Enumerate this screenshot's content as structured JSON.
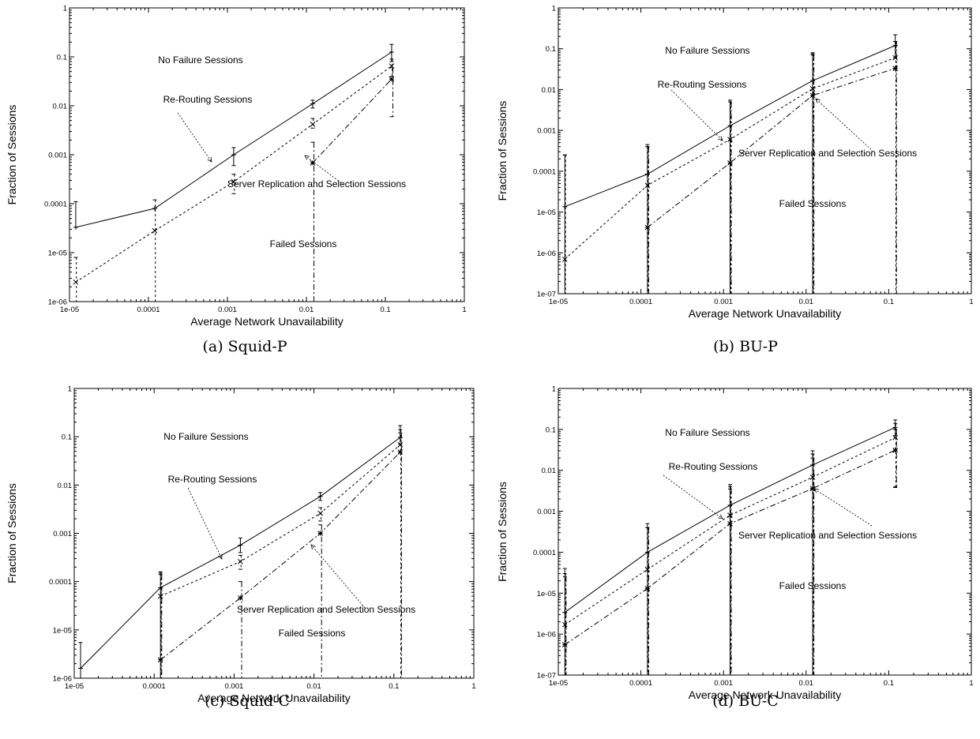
{
  "chart_data": [
    {
      "type": "line",
      "caption": "(a) Squid-P",
      "xlabel": "Average Network Unavailability",
      "ylabel": "Fraction of Sessions",
      "xscale": "log",
      "yscale": "log",
      "xlim": [
        1e-05,
        1
      ],
      "ylim": [
        1e-06,
        1
      ],
      "xticks": [
        "1e-05",
        "0.0001",
        "0.001",
        "0.01",
        "0.1",
        "1"
      ],
      "yticks": [
        "1e-06",
        "1e-05",
        "0.0001",
        "0.001",
        "0.01",
        "0.1",
        "1"
      ],
      "x": [
        1.2e-05,
        0.00012,
        0.0012,
        0.012,
        0.12
      ],
      "series": [
        {
          "values": [
            3.3e-05,
            8e-05,
            0.001,
            0.011,
            0.125
          ],
          "marker": "+",
          "err_low": [
            null,
            null,
            0.0006,
            0.009,
            0.08
          ],
          "err_high": [
            0.00011,
            null,
            0.0014,
            0.013,
            0.18
          ]
        },
        {
          "values": [
            2.5e-06,
            2.8e-05,
            0.00028,
            0.0042,
            0.065
          ],
          "marker": "x",
          "err_low": [
            1e-06,
            1e-06,
            0.00016,
            0.0035,
            0.04
          ],
          "err_high": [
            8e-06,
            0.00012,
            0.0004,
            0.0055,
            0.09
          ]
        },
        {
          "values": [
            null,
            null,
            null,
            0.00068,
            0.035
          ],
          "marker": "*",
          "err_low": [
            null,
            null,
            null,
            1e-06,
            0.006
          ],
          "err_high": [
            null,
            null,
            null,
            0.0018,
            0.06
          ]
        }
      ],
      "annotations": [
        {
          "text": "No Failure Sessions"
        },
        {
          "text": "Re-Routing Sessions"
        },
        {
          "text": "Server Replication and Selection Sessions"
        },
        {
          "text": "Failed Sessions"
        }
      ]
    },
    {
      "type": "line",
      "caption": "(b) BU-P",
      "xlabel": "Average Network Unavailability",
      "ylabel": "Fraction of Sessions",
      "xscale": "log",
      "yscale": "log",
      "xlim": [
        1e-05,
        1
      ],
      "ylim": [
        1e-07,
        1
      ],
      "xticks": [
        "1e-05",
        "0.0001",
        "0.001",
        "0.01",
        "0.1",
        "1"
      ],
      "yticks": [
        "1e-07",
        "1e-06",
        "1e-05",
        "0.0001",
        "0.001",
        "0.01",
        "0.1",
        "1"
      ],
      "x": [
        1.2e-05,
        0.00012,
        0.0012,
        0.012,
        0.12
      ],
      "series": [
        {
          "values": [
            1.35e-05,
            8.5e-05,
            0.0013,
            0.0165,
            0.12
          ],
          "marker": "+",
          "err_low": [
            1e-07,
            1e-07,
            1e-07,
            1e-07,
            0.06
          ],
          "err_high": [
            0.00025,
            0.00045,
            0.0055,
            0.08,
            0.22
          ]
        },
        {
          "values": [
            7e-07,
            4.5e-05,
            0.0006,
            0.0105,
            0.06
          ],
          "marker": "x",
          "err_low": [
            1e-07,
            1e-07,
            1e-07,
            1e-07,
            1e-07
          ],
          "err_high": [
            0.00025,
            0.0004,
            0.005,
            0.075,
            0.15
          ]
        },
        {
          "values": [
            null,
            4.2e-06,
            0.00016,
            0.0072,
            0.033
          ],
          "marker": "*",
          "err_low": [
            null,
            1e-07,
            1e-07,
            1e-07,
            1e-07
          ],
          "err_high": [
            null,
            0.0004,
            0.005,
            0.07,
            0.15
          ]
        }
      ],
      "annotations": [
        {
          "text": "No Failure Sessions"
        },
        {
          "text": "Re-Routing Sessions"
        },
        {
          "text": "Server Replication and Selection Sessions"
        },
        {
          "text": "Failed Sessions"
        }
      ]
    },
    {
      "type": "line",
      "caption": "(c) Squid-C",
      "xlabel": "Average Network Unavailability",
      "ylabel": "Fraction of Sessions",
      "xscale": "log",
      "yscale": "log",
      "xlim": [
        1e-05,
        1
      ],
      "ylim": [
        1e-06,
        1
      ],
      "xticks": [
        "1e-05",
        "0.0001",
        "0.001",
        "0.01",
        "0.1",
        "1"
      ],
      "yticks": [
        "1e-06",
        "1e-05",
        "0.0001",
        "0.001",
        "0.01",
        "0.1",
        "1"
      ],
      "x": [
        1.2e-05,
        0.00012,
        0.0012,
        0.012,
        0.12
      ],
      "series": [
        {
          "values": [
            1.6e-06,
            7.5e-05,
            0.00057,
            0.0058,
            0.097
          ],
          "marker": "+",
          "err_low": [
            1e-06,
            1e-06,
            0.0004,
            0.0048,
            0.07
          ],
          "err_high": [
            5.5e-06,
            0.00016,
            0.0008,
            0.007,
            0.17
          ]
        },
        {
          "values": [
            null,
            5e-05,
            0.00026,
            0.0026,
            0.068
          ],
          "marker": "x",
          "err_low": [
            null,
            1e-06,
            0.00018,
            0.0018,
            1e-06
          ],
          "err_high": [
            null,
            0.00015,
            0.00035,
            0.0034,
            0.14
          ]
        },
        {
          "values": [
            null,
            2.4e-06,
            4.6e-05,
            0.001,
            0.048
          ],
          "marker": "*",
          "err_low": [
            null,
            1e-06,
            1e-06,
            1e-06,
            1e-06
          ],
          "err_high": [
            null,
            0.00014,
            0.0001,
            0.0015,
            0.12
          ]
        }
      ],
      "annotations": [
        {
          "text": "No Failure Sessions"
        },
        {
          "text": "Re-Routing Sessions"
        },
        {
          "text": "Server Replication and Selection Sessions"
        },
        {
          "text": "Failed Sessions"
        }
      ]
    },
    {
      "type": "line",
      "caption": "(d) BU-C",
      "xlabel": "Average Network Unavailability",
      "ylabel": "Fraction of Sessions",
      "xscale": "log",
      "yscale": "log",
      "xlim": [
        1e-05,
        1
      ],
      "ylim": [
        1e-07,
        1
      ],
      "xticks": [
        "1e-05",
        "0.0001",
        "0.001",
        "0.01",
        "0.1",
        "1"
      ],
      "yticks": [
        "1e-07",
        "1e-06",
        "1e-05",
        "0.0001",
        "0.001",
        "0.01",
        "0.1",
        "1"
      ],
      "x": [
        1.2e-05,
        0.00012,
        0.0012,
        0.012,
        0.12
      ],
      "series": [
        {
          "values": [
            3.4e-06,
            0.0001,
            0.0014,
            0.0135,
            0.112
          ],
          "marker": "+",
          "err_low": [
            1e-07,
            1e-07,
            1e-07,
            1e-07,
            0.07
          ],
          "err_high": [
            4e-05,
            0.0005,
            0.0045,
            0.03,
            0.17
          ]
        },
        {
          "values": [
            1.7e-06,
            3.8e-05,
            0.0008,
            0.0068,
            0.063
          ],
          "marker": "x",
          "err_low": [
            1e-07,
            1e-07,
            1e-07,
            1e-07,
            0.004
          ],
          "err_high": [
            3e-05,
            0.0004,
            0.004,
            0.025,
            0.14
          ]
        },
        {
          "values": [
            5.5e-07,
            1.3e-05,
            0.0005,
            0.0036,
            0.031
          ],
          "marker": "*",
          "err_low": [
            1e-07,
            1e-07,
            1e-07,
            1e-07,
            0.0038
          ],
          "err_high": [
            2.5e-05,
            0.0004,
            0.0035,
            0.02,
            0.1
          ]
        }
      ],
      "annotations": [
        {
          "text": "No Failure Sessions"
        },
        {
          "text": "Re-Routing Sessions"
        },
        {
          "text": "Server Replication and Selection Sessions"
        },
        {
          "text": "Failed Sessions"
        }
      ]
    }
  ]
}
